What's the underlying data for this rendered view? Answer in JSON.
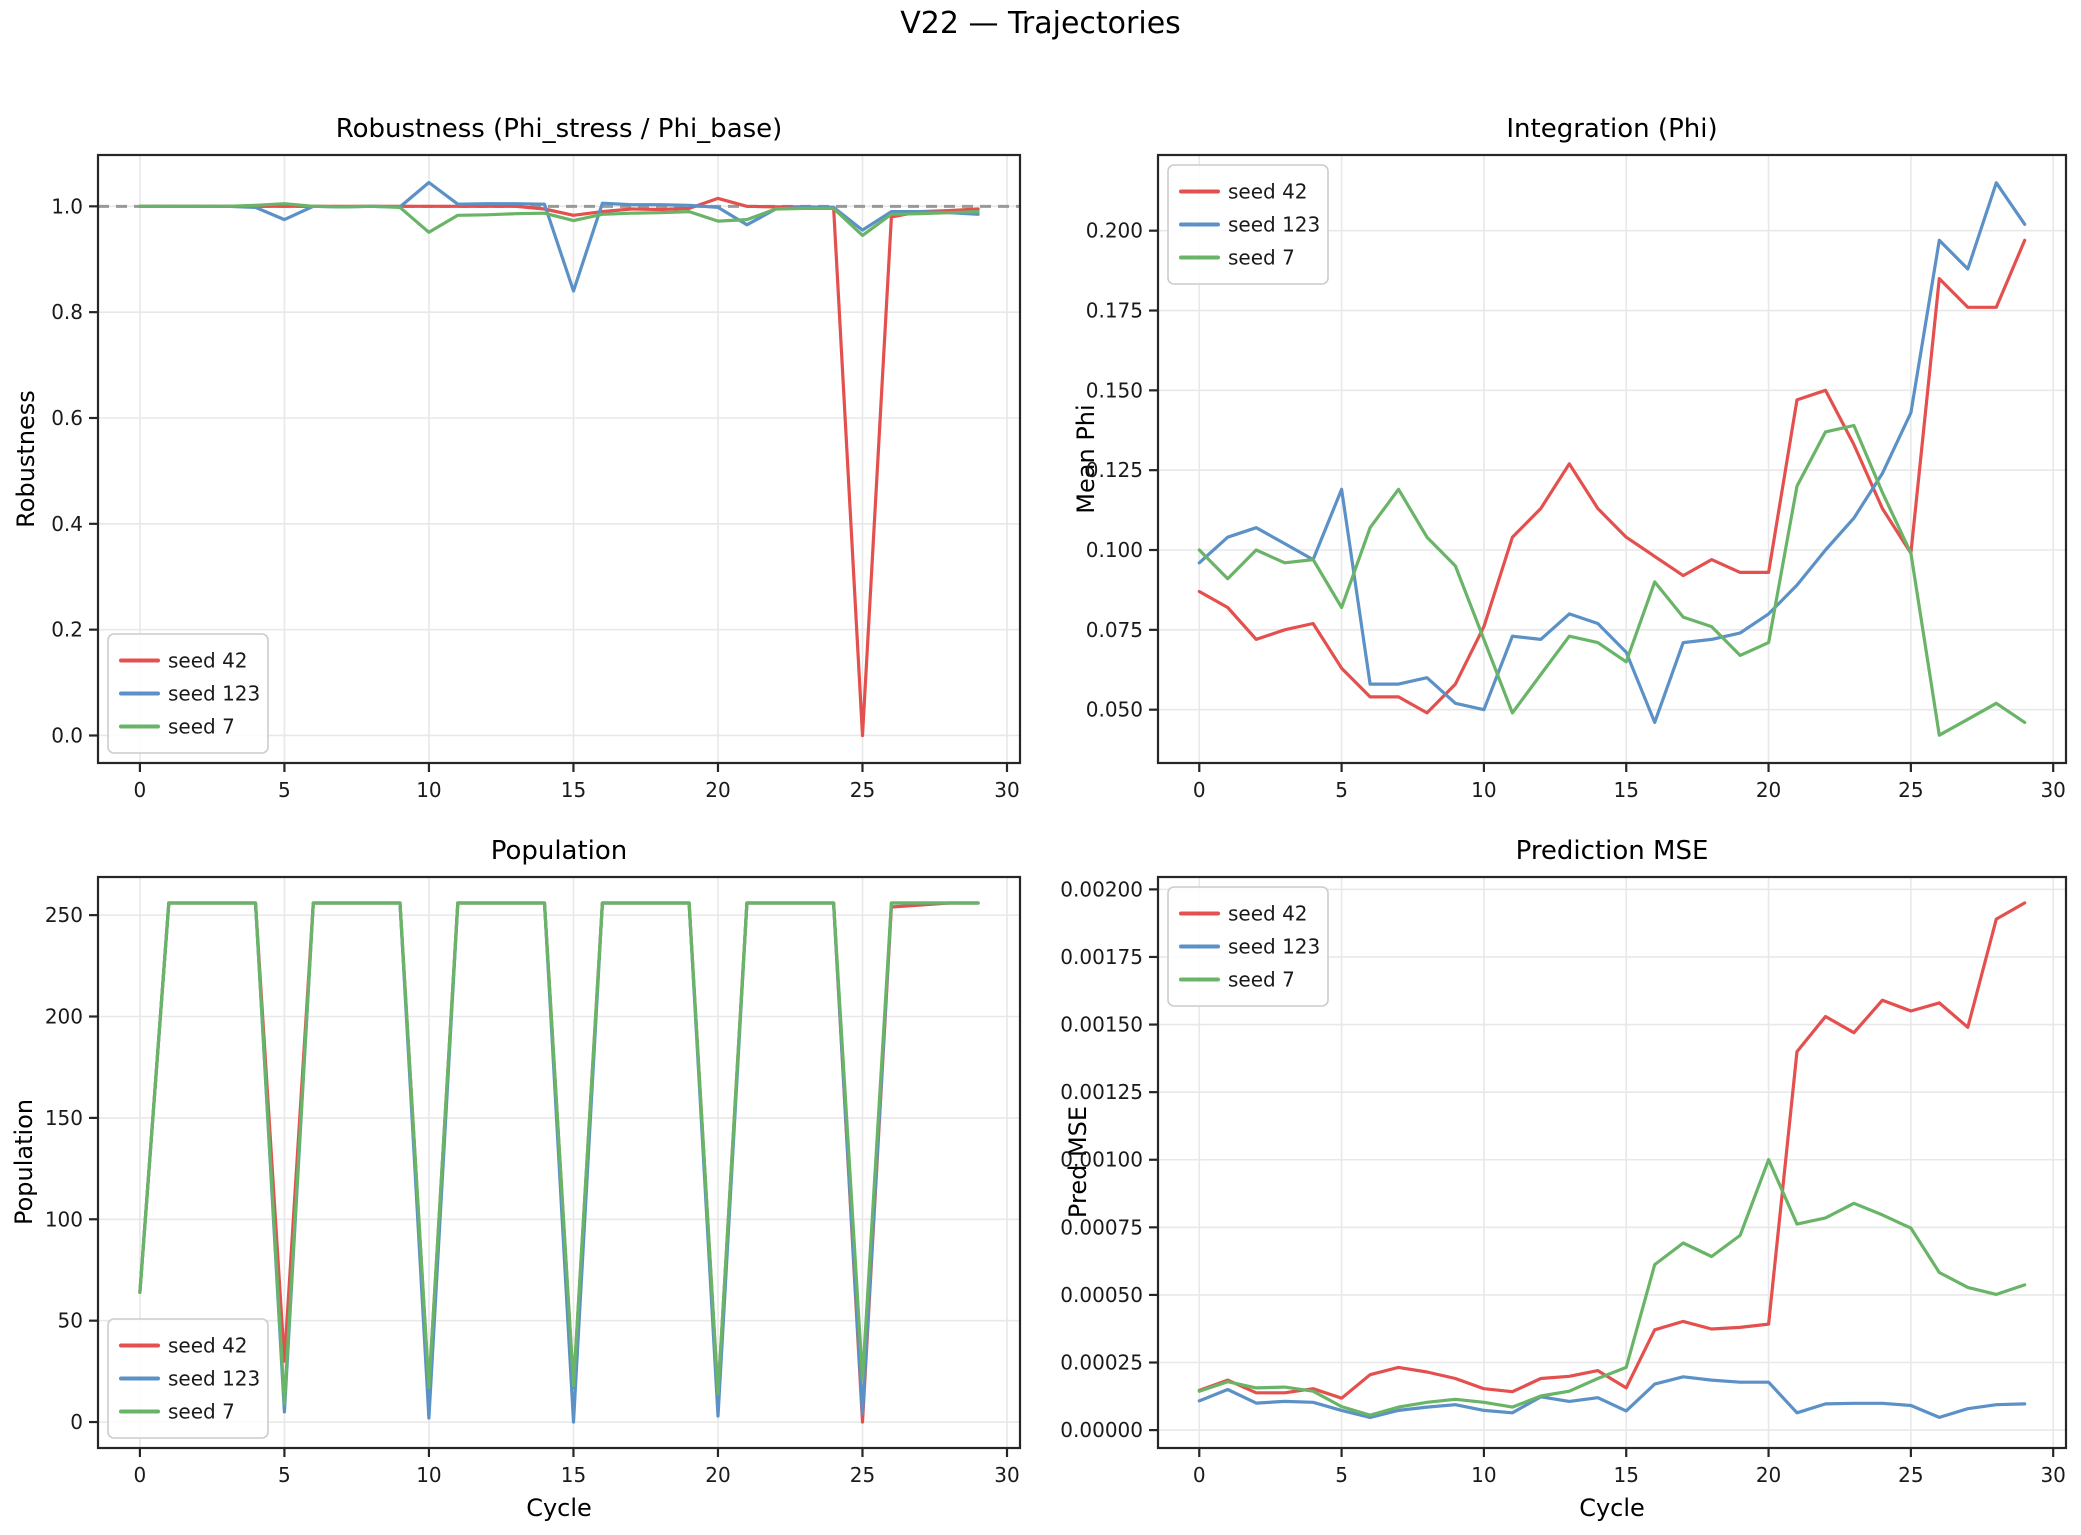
{
  "figure_title": "V22 — Trajectories",
  "colors": {
    "seed42": "#e3504e",
    "seed123": "#5b91c6",
    "seed7": "#69b467",
    "reference_dashed": "#999999",
    "grid": "#e8e8e8",
    "spine": "#262626",
    "legend_border": "#cccccc"
  },
  "cycles": [
    0,
    1,
    2,
    3,
    4,
    5,
    6,
    7,
    8,
    9,
    10,
    11,
    12,
    13,
    14,
    15,
    16,
    17,
    18,
    19,
    20,
    21,
    22,
    23,
    24,
    25,
    26,
    27,
    28,
    29
  ],
  "chart_data": [
    {
      "type": "line",
      "title": "Robustness (Phi_stress / Phi_base)",
      "xlabel": "",
      "ylabel": "Robustness",
      "xlim": [
        -1.45,
        30.45
      ],
      "ylim": [
        -0.052,
        1.097
      ],
      "grid": true,
      "xticks": {
        "values": [
          0,
          5,
          10,
          15,
          20,
          25,
          30
        ],
        "labels": [
          "0",
          "5",
          "10",
          "15",
          "20",
          "25",
          "30"
        ]
      },
      "yticks": {
        "values": [
          0.0,
          0.2,
          0.4,
          0.6,
          0.8,
          1.0
        ],
        "labels": [
          "0.0",
          "0.2",
          "0.4",
          "0.6",
          "0.8",
          "1.0"
        ]
      },
      "ref_line": {
        "y": 1.0,
        "style": "dashed",
        "color": "#999999"
      },
      "legend": {
        "position": "lower-left",
        "labels": [
          "seed 42",
          "seed 123",
          "seed 7"
        ]
      },
      "series": [
        {
          "name": "seed 42",
          "color": "#e3504e",
          "values": [
            1.0,
            1.0,
            1.0,
            1.0,
            1.0,
            1.0,
            1.0,
            1.0,
            1.0,
            1.0,
            1.0,
            1.0,
            1.0,
            1.0,
            0.995,
            0.983,
            0.99,
            0.995,
            0.994,
            0.996,
            1.015,
            1.0,
            0.999,
            0.999,
            0.998,
            0.0,
            0.98,
            0.99,
            0.992,
            0.995
          ]
        },
        {
          "name": "seed 123",
          "color": "#5b91c6",
          "values": [
            1.0,
            1.0,
            1.0,
            1.0,
            0.998,
            0.975,
            1.0,
            0.999,
            1.0,
            0.999,
            1.045,
            1.004,
            1.005,
            1.005,
            1.004,
            0.84,
            1.006,
            1.003,
            1.003,
            1.002,
            0.998,
            0.965,
            0.995,
            0.998,
            0.998,
            0.955,
            0.99,
            0.99,
            0.988,
            0.985
          ]
        },
        {
          "name": "seed 7",
          "color": "#69b467",
          "values": [
            1.0,
            1.0,
            1.0,
            1.0,
            1.002,
            1.005,
            1.0,
            0.999,
            1.0,
            0.998,
            0.951,
            0.983,
            0.984,
            0.986,
            0.987,
            0.973,
            0.985,
            0.987,
            0.988,
            0.99,
            0.972,
            0.975,
            0.995,
            0.996,
            0.996,
            0.945,
            0.985,
            0.986,
            0.988,
            0.99
          ]
        }
      ]
    },
    {
      "type": "line",
      "title": "Integration (Phi)",
      "xlabel": "",
      "ylabel": "Mean Phi",
      "xlim": [
        -1.45,
        30.45
      ],
      "ylim": [
        0.0333,
        0.2237
      ],
      "grid": true,
      "xticks": {
        "values": [
          0,
          5,
          10,
          15,
          20,
          25,
          30
        ],
        "labels": [
          "0",
          "5",
          "10",
          "15",
          "20",
          "25",
          "30"
        ]
      },
      "yticks": {
        "values": [
          0.05,
          0.075,
          0.1,
          0.125,
          0.15,
          0.175,
          0.2
        ],
        "labels": [
          "0.050",
          "0.075",
          "0.100",
          "0.125",
          "0.150",
          "0.175",
          "0.200"
        ]
      },
      "legend": {
        "position": "upper-left",
        "labels": [
          "seed 42",
          "seed 123",
          "seed 7"
        ]
      },
      "series": [
        {
          "name": "seed 42",
          "color": "#e3504e",
          "values": [
            0.087,
            0.082,
            0.072,
            0.075,
            0.077,
            0.063,
            0.054,
            0.054,
            0.049,
            0.058,
            0.076,
            0.104,
            0.113,
            0.127,
            0.113,
            0.104,
            0.098,
            0.092,
            0.097,
            0.093,
            0.093,
            0.147,
            0.15,
            0.133,
            0.113,
            0.099,
            0.185,
            0.176,
            0.176,
            0.197
          ]
        },
        {
          "name": "seed 123",
          "color": "#5b91c6",
          "values": [
            0.096,
            0.104,
            0.107,
            0.102,
            0.097,
            0.119,
            0.058,
            0.058,
            0.06,
            0.052,
            0.05,
            0.073,
            0.072,
            0.08,
            0.077,
            0.068,
            0.046,
            0.071,
            0.072,
            0.074,
            0.08,
            0.089,
            0.1,
            0.11,
            0.124,
            0.143,
            0.197,
            0.188,
            0.215,
            0.202
          ]
        },
        {
          "name": "seed 7",
          "color": "#69b467",
          "values": [
            0.1,
            0.091,
            0.1,
            0.096,
            0.097,
            0.082,
            0.107,
            0.119,
            0.104,
            0.095,
            0.072,
            0.049,
            0.061,
            0.073,
            0.071,
            0.065,
            0.09,
            0.079,
            0.076,
            0.067,
            0.071,
            0.12,
            0.137,
            0.139,
            0.118,
            0.099,
            0.042,
            0.047,
            0.052,
            0.046
          ]
        }
      ]
    },
    {
      "type": "line",
      "title": "Population",
      "xlabel": "Cycle",
      "ylabel": "Population",
      "xlim": [
        -1.45,
        30.45
      ],
      "ylim": [
        -12.8,
        268.8
      ],
      "grid": true,
      "xticks": {
        "values": [
          0,
          5,
          10,
          15,
          20,
          25,
          30
        ],
        "labels": [
          "0",
          "5",
          "10",
          "15",
          "20",
          "25",
          "30"
        ]
      },
      "yticks": {
        "values": [
          0,
          50,
          100,
          150,
          200,
          250
        ],
        "labels": [
          "0",
          "50",
          "100",
          "150",
          "200",
          "250"
        ]
      },
      "legend": {
        "position": "lower-left",
        "labels": [
          "seed 42",
          "seed 123",
          "seed 7"
        ]
      },
      "series": [
        {
          "name": "seed 42",
          "color": "#e3504e",
          "values": [
            64,
            256,
            256,
            256,
            256,
            30,
            256,
            256,
            256,
            256,
            16,
            256,
            256,
            256,
            256,
            17,
            256,
            256,
            256,
            256,
            13,
            256,
            256,
            256,
            256,
            0,
            254,
            255,
            256,
            256
          ]
        },
        {
          "name": "seed 123",
          "color": "#5b91c6",
          "values": [
            64,
            256,
            256,
            256,
            256,
            5,
            256,
            256,
            256,
            256,
            2,
            256,
            256,
            256,
            256,
            0,
            256,
            256,
            256,
            256,
            3,
            256,
            256,
            256,
            256,
            4,
            256,
            256,
            256,
            256
          ]
        },
        {
          "name": "seed 7",
          "color": "#69b467",
          "values": [
            64,
            256,
            256,
            256,
            256,
            9,
            256,
            256,
            256,
            256,
            17,
            256,
            256,
            256,
            256,
            18,
            256,
            256,
            256,
            256,
            14,
            256,
            256,
            256,
            256,
            21,
            256,
            256,
            256,
            256
          ]
        }
      ]
    },
    {
      "type": "line",
      "title": "Prediction MSE",
      "xlabel": "Cycle",
      "ylabel": "Pred MSE",
      "xlim": [
        -1.45,
        30.45
      ],
      "ylim": [
        -6.62e-05,
        0.0020458
      ],
      "grid": true,
      "xticks": {
        "values": [
          0,
          5,
          10,
          15,
          20,
          25,
          30
        ],
        "labels": [
          "0",
          "5",
          "10",
          "15",
          "20",
          "25",
          "30"
        ]
      },
      "yticks": {
        "values": [
          0.0,
          0.00025,
          0.0005,
          0.00075,
          0.001,
          0.00125,
          0.0015,
          0.00175,
          0.002
        ],
        "labels": [
          "0.00000",
          "0.00025",
          "0.00050",
          "0.00075",
          "0.00100",
          "0.00125",
          "0.00150",
          "0.00175",
          "0.00200"
        ]
      },
      "legend": {
        "position": "upper-left",
        "labels": [
          "seed 42",
          "seed 123",
          "seed 7"
        ]
      },
      "series": [
        {
          "name": "seed 42",
          "color": "#e3504e",
          "values": [
            0.000147,
            0.000185,
            0.000138,
            0.000138,
            0.000153,
            0.000118,
            0.000205,
            0.000232,
            0.000215,
            0.000191,
            0.000153,
            0.000142,
            0.000191,
            0.000199,
            0.00022,
            0.000156,
            0.000371,
            0.000402,
            0.000374,
            0.00038,
            0.000392,
            0.0014,
            0.00153,
            0.00147,
            0.00159,
            0.00155,
            0.00158,
            0.00149,
            0.00189,
            0.00195
          ]
        },
        {
          "name": "seed 123",
          "color": "#5b91c6",
          "values": [
            0.000108,
            0.00015,
            0.0001,
            0.000106,
            0.000103,
            7.3e-05,
            4.7e-05,
            7.3e-05,
            8.5e-05,
            9.4e-05,
            7.3e-05,
            6.4e-05,
            0.000123,
            0.000106,
            0.00012,
            7.1e-05,
            0.00017,
            0.000197,
            0.000185,
            0.000177,
            0.000177,
            6.4e-05,
            9.7e-05,
            9.9e-05,
            9.9e-05,
            9.1e-05,
            4.7e-05,
            7.9e-05,
            9.4e-05,
            9.7e-05
          ]
        },
        {
          "name": "seed 7",
          "color": "#69b467",
          "values": [
            0.000144,
            0.000179,
            0.000156,
            0.000159,
            0.000144,
            8.7e-05,
            5.5e-05,
            8.5e-05,
            0.000103,
            0.000114,
            0.000103,
            8.5e-05,
            0.000126,
            0.000144,
            0.000191,
            0.000232,
            0.000612,
            0.000692,
            0.000642,
            0.00072,
            0.001,
            0.000762,
            0.000785,
            0.000839,
            0.000796,
            0.000747,
            0.000583,
            0.000528,
            0.000502,
            0.000537
          ]
        }
      ]
    }
  ]
}
